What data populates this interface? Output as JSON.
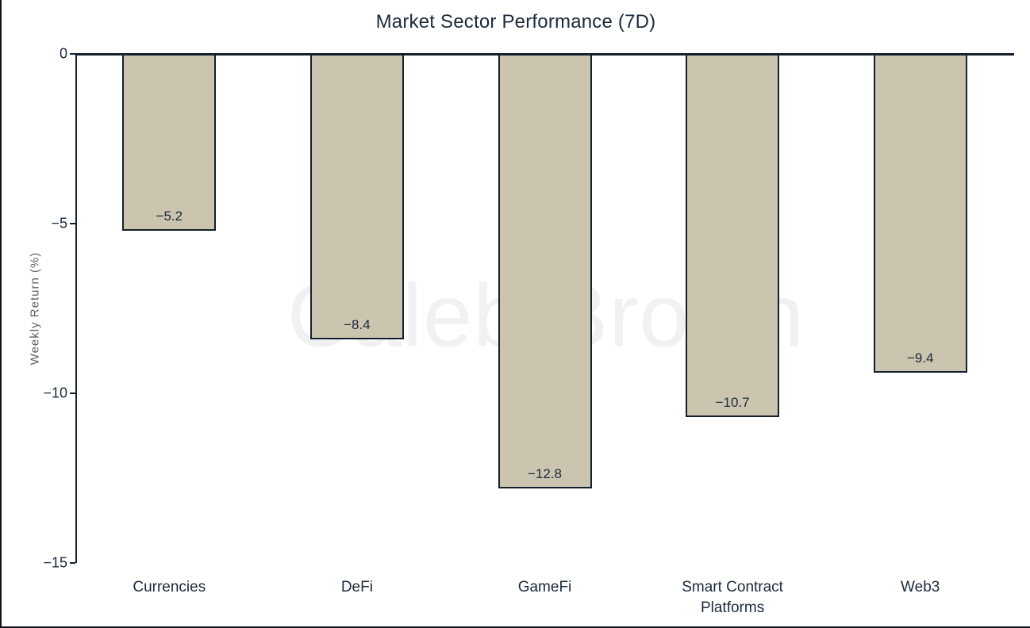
{
  "title": "Market Sector Performance (7D)",
  "watermark": "Caleb Brown",
  "colors": {
    "bar_fill": "#cbc4ae",
    "bar_border": "#14202d",
    "axis": "#14202d",
    "label_text": "#1b2a3b",
    "ylabel_text": "#5b6168",
    "watermark_text": "#f0f1f2",
    "background": "#ffffff"
  },
  "chart_data": {
    "type": "bar",
    "title": "Market Sector Performance (7D)",
    "categories": [
      "Currencies",
      "DeFi",
      "GameFi",
      "Smart Contract Platforms",
      "Web3"
    ],
    "values": [
      -5.2,
      -8.4,
      -12.8,
      -10.7,
      -9.4
    ],
    "value_labels": [
      "−5.2",
      "−8.4",
      "−12.8",
      "−10.7",
      "−9.4"
    ],
    "xlabel": "",
    "ylabel": "Weekly Return (%)",
    "ylim": [
      -15,
      0
    ],
    "yticks": [
      0,
      -5,
      -10,
      -15
    ],
    "ytick_labels": [
      "0",
      "−5",
      "−10",
      "−15"
    ],
    "grid": false,
    "legend_position": "none",
    "bar_orientation": "vertical",
    "value_label_position": "inside-bottom"
  }
}
